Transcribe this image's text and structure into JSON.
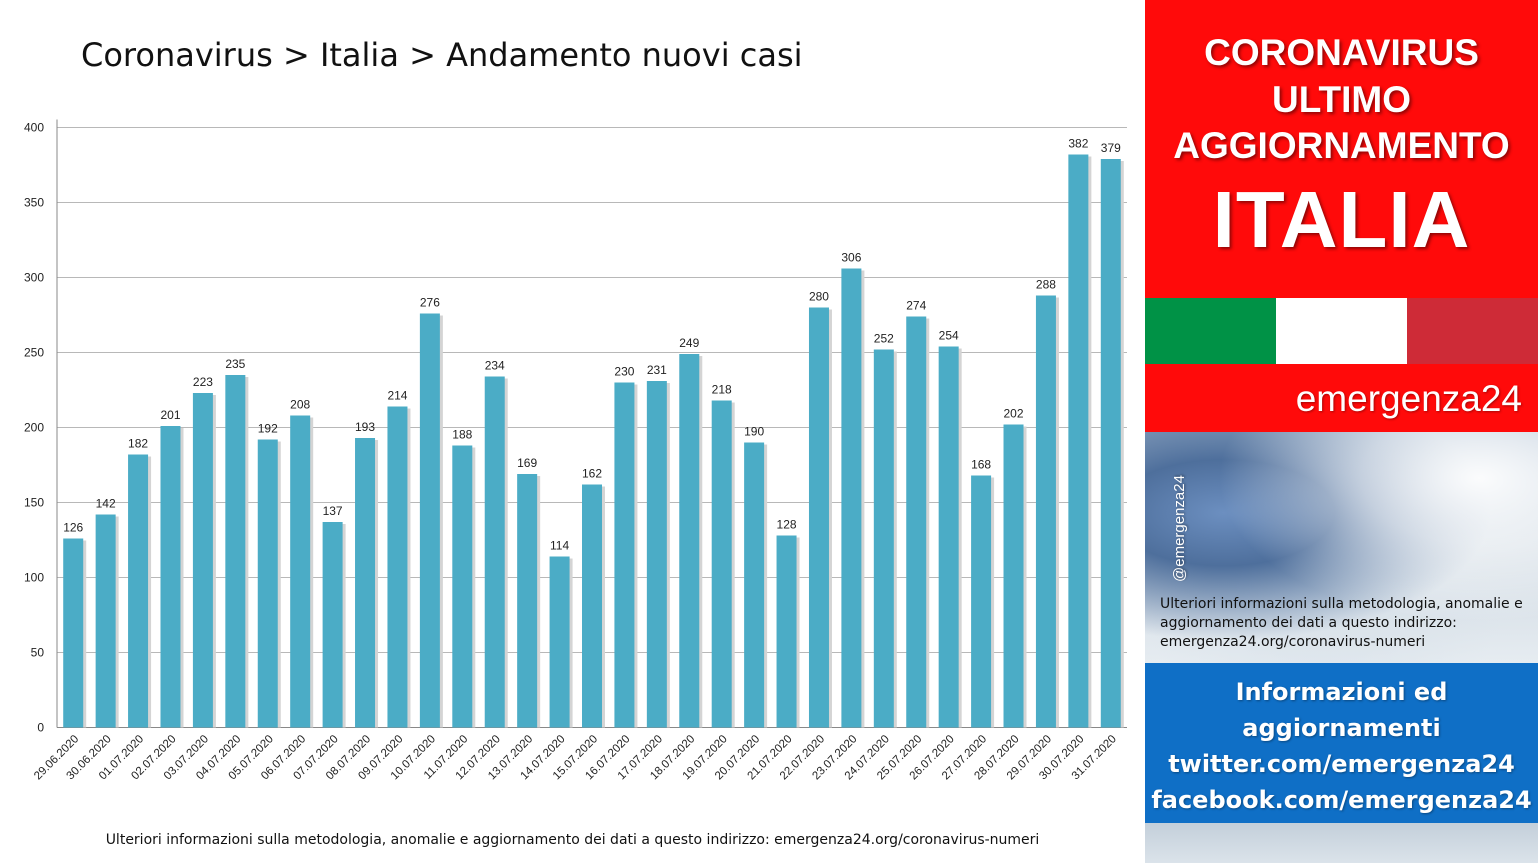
{
  "chart_data": {
    "type": "bar",
    "title": "Coronavirus > Italia > Andamento nuovi casi",
    "xlabel": "",
    "ylabel": "",
    "ylim": [
      0,
      400
    ],
    "yticks": [
      0,
      50,
      100,
      150,
      200,
      250,
      300,
      350,
      400
    ],
    "grid": true,
    "bar_color": "#4bacc6",
    "categories": [
      "29.06.2020",
      "30.06.2020",
      "01.07.2020",
      "02.07.2020",
      "03.07.2020",
      "04.07.2020",
      "05.07.2020",
      "06.07.2020",
      "07.07.2020",
      "08.07.2020",
      "09.07.2020",
      "10.07.2020",
      "11.07.2020",
      "12.07.2020",
      "13.07.2020",
      "14.07.2020",
      "15.07.2020",
      "16.07.2020",
      "17.07.2020",
      "18.07.2020",
      "19.07.2020",
      "20.07.2020",
      "21.07.2020",
      "22.07.2020",
      "23.07.2020",
      "24.07.2020",
      "25.07.2020",
      "26.07.2020",
      "27.07.2020",
      "28.07.2020",
      "29.07.2020",
      "30.07.2020",
      "31.07.2020"
    ],
    "values": [
      126,
      142,
      182,
      201,
      223,
      235,
      192,
      208,
      137,
      193,
      214,
      276,
      188,
      234,
      169,
      114,
      162,
      230,
      231,
      249,
      218,
      190,
      128,
      280,
      306,
      252,
      274,
      254,
      168,
      202,
      288,
      382,
      379
    ]
  },
  "footnote": "Ulteriori informazioni sulla metodologia, anomalie e aggiornamento dei dati a questo indirizzo: emergenza24.org/coronavirus-numeri",
  "sidebar": {
    "headline_lines": [
      "CORONAVIRUS",
      "ULTIMO",
      "AGGIORNAMENTO"
    ],
    "country": "ITALIA",
    "flag_colors": [
      "#009246",
      "#ffffff",
      "#ce2b37"
    ],
    "brand": "emergenza24",
    "handle": "@emergenza24",
    "note": "Ulteriori informazioni sulla metodologia, anomalie e aggiornamento dei dati a questo indirizzo: emergenza24.org/coronavirus-numeri",
    "info_lines": [
      "Informazioni ed",
      "aggiornamenti",
      "twitter.com/emergenza24",
      "facebook.com/emergenza24"
    ],
    "colors": {
      "red": "#ff0a0a",
      "blue": "#0f6fc6"
    }
  }
}
